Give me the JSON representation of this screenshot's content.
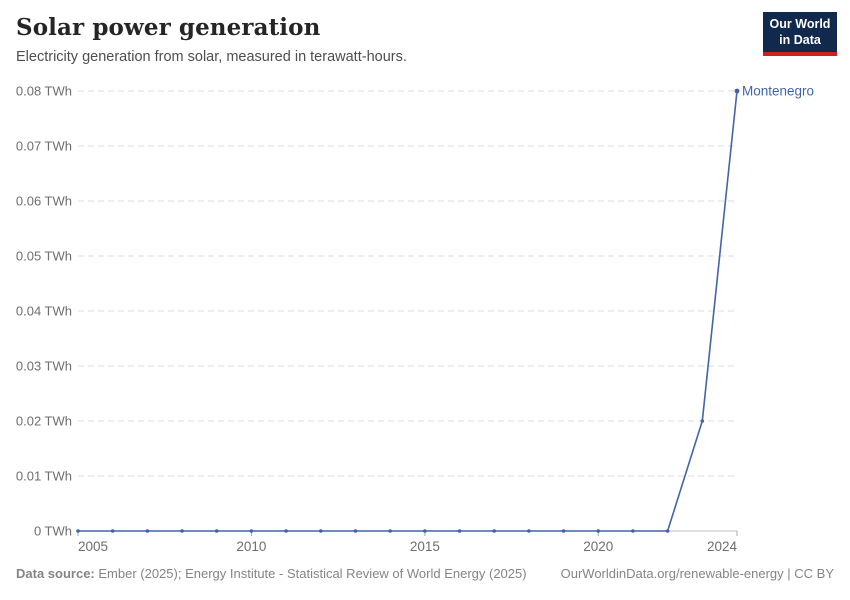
{
  "header": {
    "title": "Solar power generation",
    "subtitle": "Electricity generation from solar, measured in terawatt-hours.",
    "logo": {
      "line1": "Our World",
      "line2": "in Data"
    }
  },
  "chart_data": {
    "type": "line",
    "x": [
      2005,
      2006,
      2007,
      2008,
      2009,
      2010,
      2011,
      2012,
      2013,
      2014,
      2015,
      2016,
      2017,
      2018,
      2019,
      2020,
      2021,
      2022,
      2023,
      2024
    ],
    "series": [
      {
        "name": "Montenegro",
        "color": "#4165a8",
        "values": [
          0,
          0,
          0,
          0,
          0,
          0,
          0,
          0,
          0,
          0,
          0,
          0,
          0,
          0,
          0,
          0,
          0,
          0,
          0.02,
          0.08
        ]
      }
    ],
    "title": "Solar power generation",
    "ylabel": "",
    "xlabel": "",
    "ylim": [
      0,
      0.08
    ],
    "yticks": [
      {
        "value": 0,
        "label": "0 TWh"
      },
      {
        "value": 0.01,
        "label": "0.01 TWh"
      },
      {
        "value": 0.02,
        "label": "0.02 TWh"
      },
      {
        "value": 0.03,
        "label": "0.03 TWh"
      },
      {
        "value": 0.04,
        "label": "0.04 TWh"
      },
      {
        "value": 0.05,
        "label": "0.05 TWh"
      },
      {
        "value": 0.06,
        "label": "0.06 TWh"
      },
      {
        "value": 0.07,
        "label": "0.07 TWh"
      },
      {
        "value": 0.08,
        "label": "0.08 TWh"
      }
    ],
    "xticks": [
      2005,
      2010,
      2015,
      2020,
      2024
    ],
    "grid": "horizontal-dashed",
    "legend_position": "end-of-line-label"
  },
  "footer": {
    "source_label": "Data source:",
    "source_text": " Ember (2025); Energy Institute - Statistical Review of World Energy (2025)",
    "link_text": "OurWorldinData.org/renewable-energy | CC BY"
  },
  "colors": {
    "accent_line": "#4165a8",
    "gridline": "#dcdcdc",
    "axis_line": "#bcbcbc",
    "tick_mark": "#a8a8a8",
    "tick_label": "#6e6e6e",
    "logo_navy": "#12294e",
    "logo_red": "#c9251c"
  }
}
